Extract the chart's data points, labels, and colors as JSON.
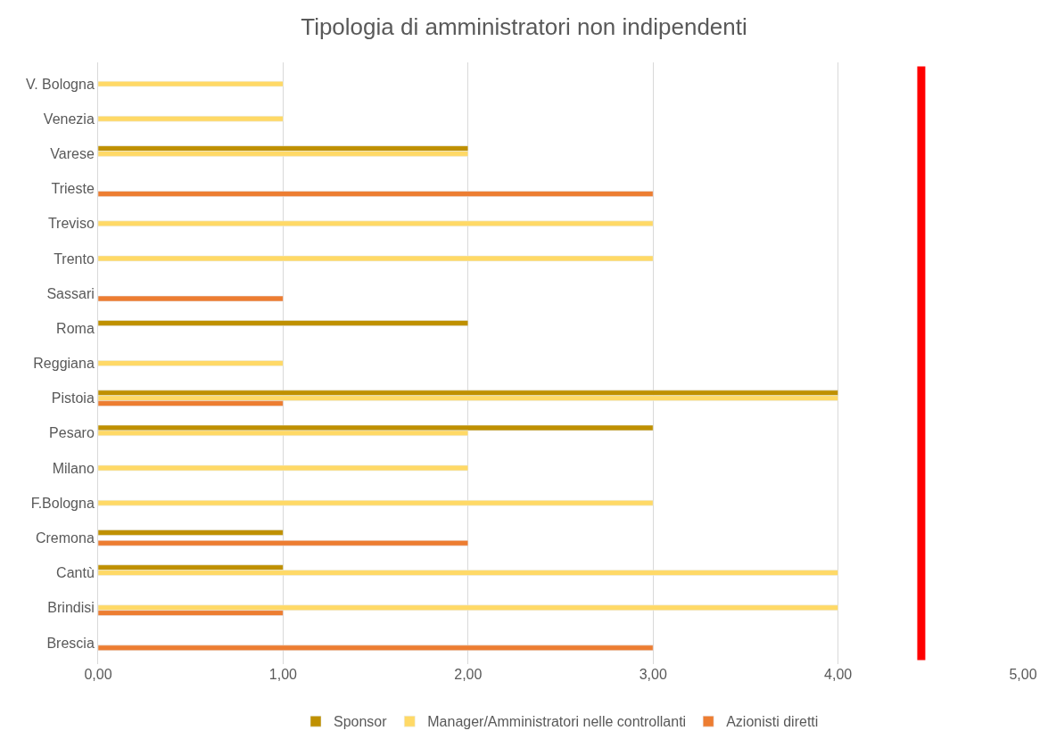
{
  "chart_data": {
    "type": "bar",
    "orientation": "horizontal",
    "title": "Tipologia di amministratori non indipendenti",
    "categories": [
      "V. Bologna",
      "Venezia",
      "Varese",
      "Trieste",
      "Treviso",
      "Trento",
      "Sassari",
      "Roma",
      "Reggiana",
      "Pistoia",
      "Pesaro",
      "Milano",
      "F.Bologna",
      "Cremona",
      "Cantù",
      "Brindisi",
      "Brescia"
    ],
    "series": [
      {
        "name": "Sponsor",
        "color": "#bf9000",
        "values": [
          null,
          null,
          2,
          null,
          null,
          null,
          null,
          2,
          null,
          4,
          3,
          null,
          null,
          1,
          1,
          null,
          null
        ]
      },
      {
        "name": "Manager/Amministratori nelle controllanti",
        "color": "#ffd966",
        "values": [
          1,
          1,
          2,
          null,
          3,
          3,
          null,
          null,
          1,
          4,
          2,
          2,
          3,
          null,
          4,
          4,
          null
        ]
      },
      {
        "name": "Azionisti diretti",
        "color": "#ed7d31",
        "values": [
          null,
          null,
          null,
          3,
          null,
          null,
          1,
          null,
          null,
          1,
          null,
          null,
          null,
          2,
          null,
          1,
          3
        ]
      }
    ],
    "xlim": [
      0,
      5
    ],
    "xticks": [
      {
        "value": 0,
        "label": "0,00"
      },
      {
        "value": 1,
        "label": "1,00"
      },
      {
        "value": 2,
        "label": "2,00"
      },
      {
        "value": 3,
        "label": "3,00"
      },
      {
        "value": 4,
        "label": "4,00"
      },
      {
        "value": 5,
        "label": "5,00"
      }
    ],
    "ref_lines": [
      {
        "axis": "x",
        "value": 4.45,
        "color": "#ff0000"
      }
    ],
    "grid": "x",
    "legend": "bottom"
  }
}
